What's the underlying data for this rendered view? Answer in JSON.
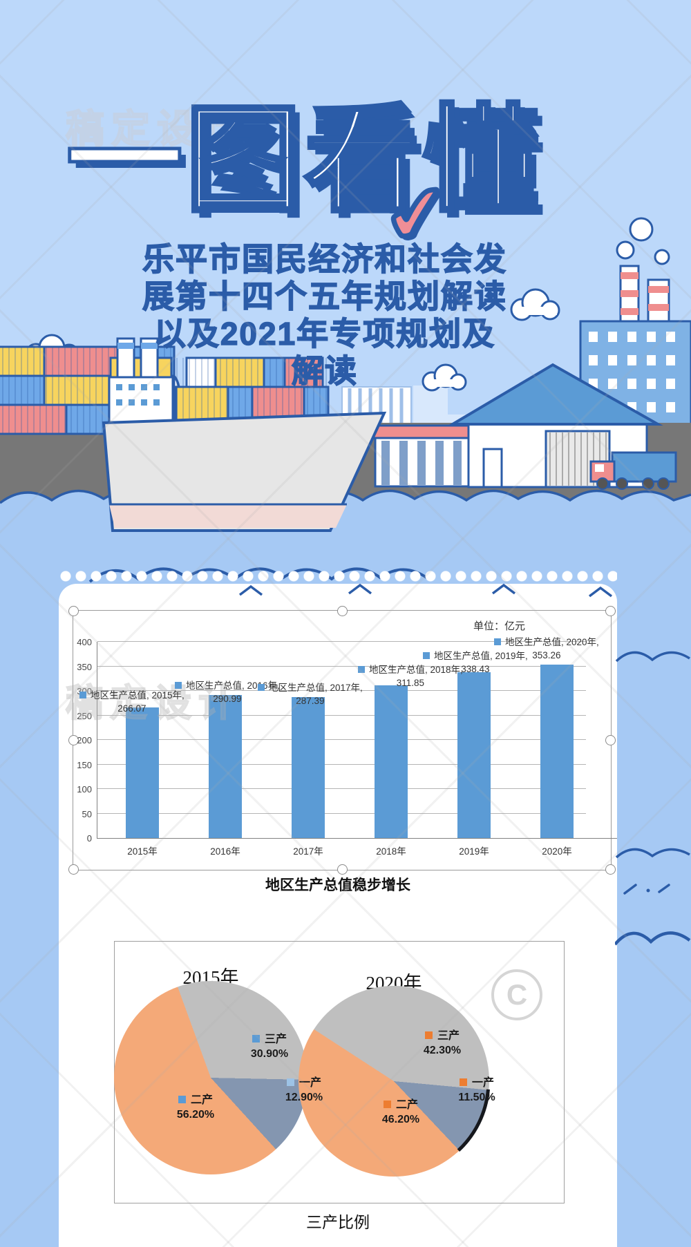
{
  "background": {
    "sky": "#BCD8FA",
    "water": "#A6C9F4",
    "accent_blue": "#2B5CA8",
    "dock_gray": "#777777"
  },
  "watermarks": {
    "brand": "稿定设计",
    "copyright_symbol": "C"
  },
  "header": {
    "title": "一图看懂",
    "check_icon": "✔",
    "check_color": "#F08E96",
    "subtitle_lines": [
      "乐平市国民经济和社会发",
      "展第十四个五年规划解读",
      "以及2021年专项规划及",
      "解读"
    ]
  },
  "chart_data": [
    {
      "type": "bar",
      "unit_label": "单位：亿元",
      "series_name": "地区生产总值",
      "categories": [
        "2015年",
        "2016年",
        "2017年",
        "2018年",
        "2019年",
        "2020年"
      ],
      "values": [
        266.07,
        290.99,
        287.39,
        311.85,
        338.43,
        353.26
      ],
      "value_labels": [
        "266.07",
        "290.99",
        "287.39",
        "311.85",
        "338.43",
        "353.26"
      ],
      "data_label_prefix": "地区生产总值",
      "y_ticks": [
        0,
        50,
        100,
        150,
        200,
        250,
        300,
        350,
        400
      ],
      "ylim": [
        0,
        400
      ],
      "bar_color": "#5B9BD5",
      "grid": true,
      "legend_position": "none",
      "caption": "地区生产总值稳步增长"
    },
    {
      "type": "pie",
      "caption": "三产比例",
      "slice_colors": {
        "一产": "#8496B0",
        "二产": "#F4A978",
        "三产": "#BFBFBF"
      },
      "pies": [
        {
          "title": "2015年",
          "rotation_deg": -20,
          "display_order": [
            "三产",
            "一产",
            "二产"
          ],
          "marker_colors": {
            "一产": "#9DC3E6",
            "二产": "#5B9BD5",
            "三产": "#5B9BD5"
          },
          "slices": [
            {
              "label": "一产",
              "value": 12.9,
              "pct": "12.90%"
            },
            {
              "label": "二产",
              "value": 56.2,
              "pct": "56.20%"
            },
            {
              "label": "三产",
              "value": 30.9,
              "pct": "30.90%"
            }
          ]
        },
        {
          "title": "2020年",
          "rotation_deg": -57,
          "display_order": [
            "三产",
            "一产",
            "二产"
          ],
          "marker_colors": {
            "一产": "#ED7D31",
            "二产": "#ED7D31",
            "三产": "#ED7D31"
          },
          "slices": [
            {
              "label": "一产",
              "value": 11.5,
              "pct": "11.50%"
            },
            {
              "label": "二产",
              "value": 46.2,
              "pct": "46.20%"
            },
            {
              "label": "三产",
              "value": 42.3,
              "pct": "42.30%"
            }
          ]
        }
      ]
    }
  ]
}
